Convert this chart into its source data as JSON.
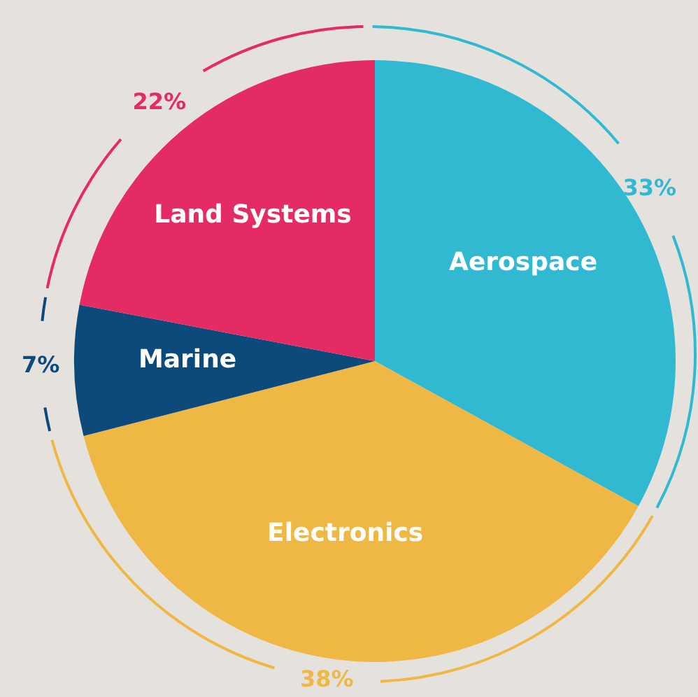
{
  "chart_data": {
    "type": "pie",
    "categories": [
      "Aerospace",
      "Electronics",
      "Marine",
      "Land Systems"
    ],
    "values": [
      33,
      38,
      7,
      22
    ],
    "colors": [
      "#32b9d2",
      "#efb844",
      "#0c4a7b",
      "#e42b64"
    ],
    "value_labels": [
      "33%",
      "38%",
      "7%",
      "22%"
    ],
    "legend": false
  }
}
